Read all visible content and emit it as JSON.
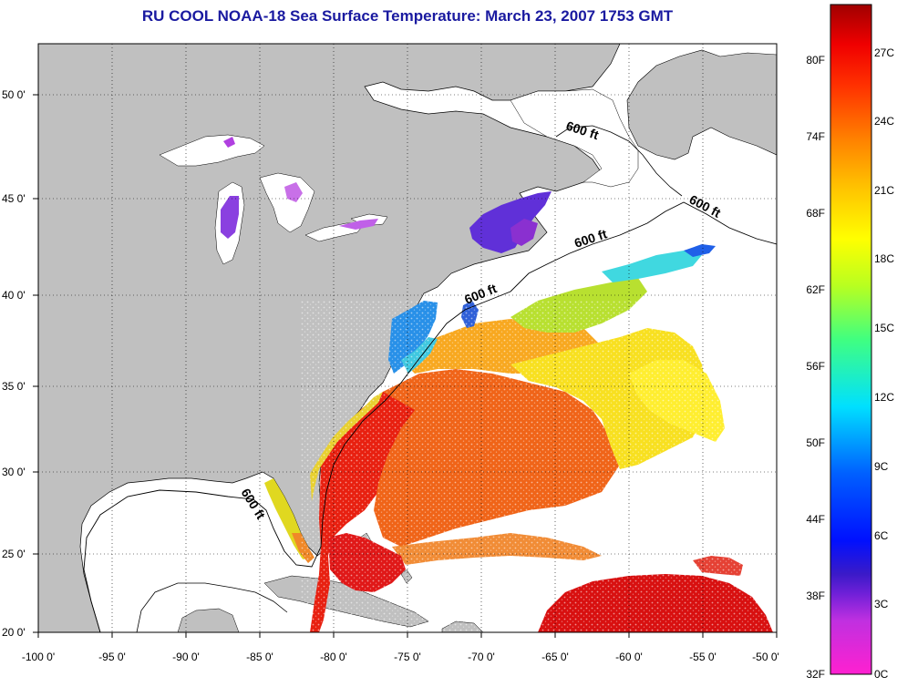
{
  "title": "RU COOL  NOAA-18  Sea Surface Temperature:  March 23, 2007 1753 GMT",
  "map": {
    "lon_ticks": [
      "-100 0'",
      "-95 0'",
      "-90 0'",
      "-85 0'",
      "-80 0'",
      "-75 0'",
      "-70 0'",
      "-65 0'",
      "-60 0'",
      "-55 0'",
      "-50 0'"
    ],
    "lat_ticks": [
      "50 0'",
      "45 0'",
      "40 0'",
      "35 0'",
      "30 0'",
      "25 0'",
      "20 0'"
    ],
    "contour_labels": [
      "600 ft",
      "600 ft",
      "600 ft",
      "600 ft",
      "600 ft"
    ],
    "land_color": "#c0c0c0",
    "ocean_color": "#ffffff"
  },
  "colorbar": {
    "fahrenheit_labels": [
      "80F",
      "74F",
      "68F",
      "62F",
      "56F",
      "50F",
      "44F",
      "38F",
      "32F"
    ],
    "celsius_labels": [
      "27C",
      "24C",
      "21C",
      "18C",
      "15C",
      "12C",
      "9C",
      "6C",
      "3C",
      "0C"
    ]
  }
}
